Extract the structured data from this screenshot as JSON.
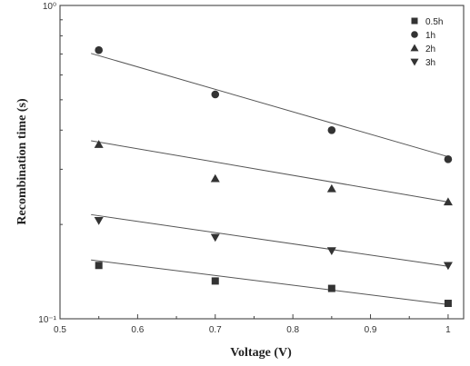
{
  "chart_data": {
    "type": "scatter",
    "title": "",
    "xlabel": "Voltage (V)",
    "ylabel": "Recombination time (s)",
    "xlim": [
      0.5,
      1.02
    ],
    "ylim": [
      0.1,
      1.0
    ],
    "y_scale": "log",
    "x_ticks": [
      {
        "value": 0.5,
        "label": "0.5"
      },
      {
        "value": 0.6,
        "label": "0.6"
      },
      {
        "value": 0.7,
        "label": "0.7"
      },
      {
        "value": 0.8,
        "label": "0.8"
      },
      {
        "value": 0.9,
        "label": "0.9"
      },
      {
        "value": 1.0,
        "label": "1"
      }
    ],
    "y_ticks": [
      {
        "value": 0.1,
        "label": "10⁻¹"
      },
      {
        "value": 1.0,
        "label": "10⁰"
      }
    ],
    "grid": false,
    "legend_position": "top-right",
    "series": [
      {
        "name": "0.5h",
        "marker": "square",
        "x": [
          0.55,
          0.7,
          0.85,
          1.0
        ],
        "y": [
          0.148,
          0.132,
          0.125,
          0.112
        ],
        "fit": {
          "x": [
            0.54,
            1.0
          ],
          "y": [
            0.154,
            0.111
          ]
        }
      },
      {
        "name": "1h",
        "marker": "circle",
        "x": [
          0.55,
          0.7,
          0.85,
          1.0
        ],
        "y": [
          0.72,
          0.52,
          0.4,
          0.323
        ],
        "fit": {
          "x": [
            0.54,
            1.0
          ],
          "y": [
            0.703,
            0.329
          ]
        }
      },
      {
        "name": "2h",
        "marker": "triangle-up",
        "x": [
          0.55,
          0.7,
          0.85,
          1.0
        ],
        "y": [
          0.36,
          0.28,
          0.26,
          0.236
        ],
        "fit": {
          "x": [
            0.54,
            1.0
          ],
          "y": [
            0.37,
            0.236
          ]
        }
      },
      {
        "name": "3h",
        "marker": "triangle-down",
        "x": [
          0.55,
          0.7,
          0.85,
          1.0
        ],
        "y": [
          0.206,
          0.182,
          0.165,
          0.148
        ],
        "fit": {
          "x": [
            0.54,
            1.0
          ],
          "y": [
            0.215,
            0.147
          ]
        }
      }
    ]
  }
}
